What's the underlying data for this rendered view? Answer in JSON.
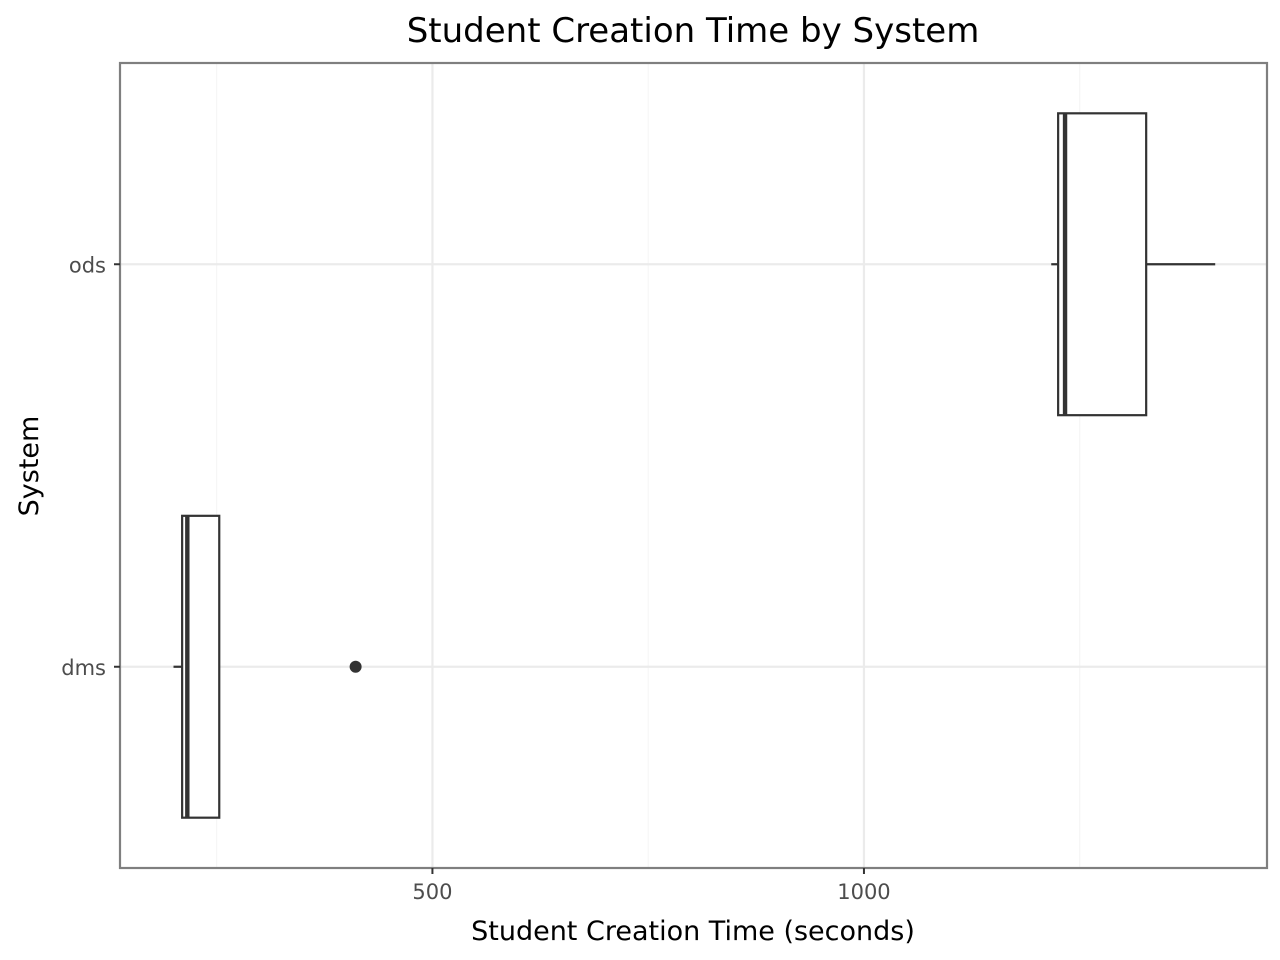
{
  "chart_data": {
    "type": "boxplot",
    "orientation": "horizontal",
    "title": "Student Creation Time by System",
    "xlabel": "Student Creation Time (seconds)",
    "ylabel": "System",
    "xlim": [
      138,
      1467
    ],
    "x_ticks": [
      500,
      1000
    ],
    "x_minor_ticks": [
      250,
      750,
      1250
    ],
    "categories": [
      "dms",
      "ods"
    ],
    "boxes": [
      {
        "category": "dms",
        "min": 200,
        "q1": 210,
        "median": 216,
        "q3": 253,
        "max": 253,
        "outliers": [
          411
        ]
      },
      {
        "category": "ods",
        "min": 1217,
        "q1": 1225,
        "median": 1233,
        "q3": 1327,
        "max": 1407,
        "outliers": []
      }
    ],
    "grid": true,
    "colors": {
      "box_line": "#333333",
      "box_fill": "#ffffff",
      "grid": "#ebebeb",
      "panel_border": "#7f7f7f"
    }
  }
}
